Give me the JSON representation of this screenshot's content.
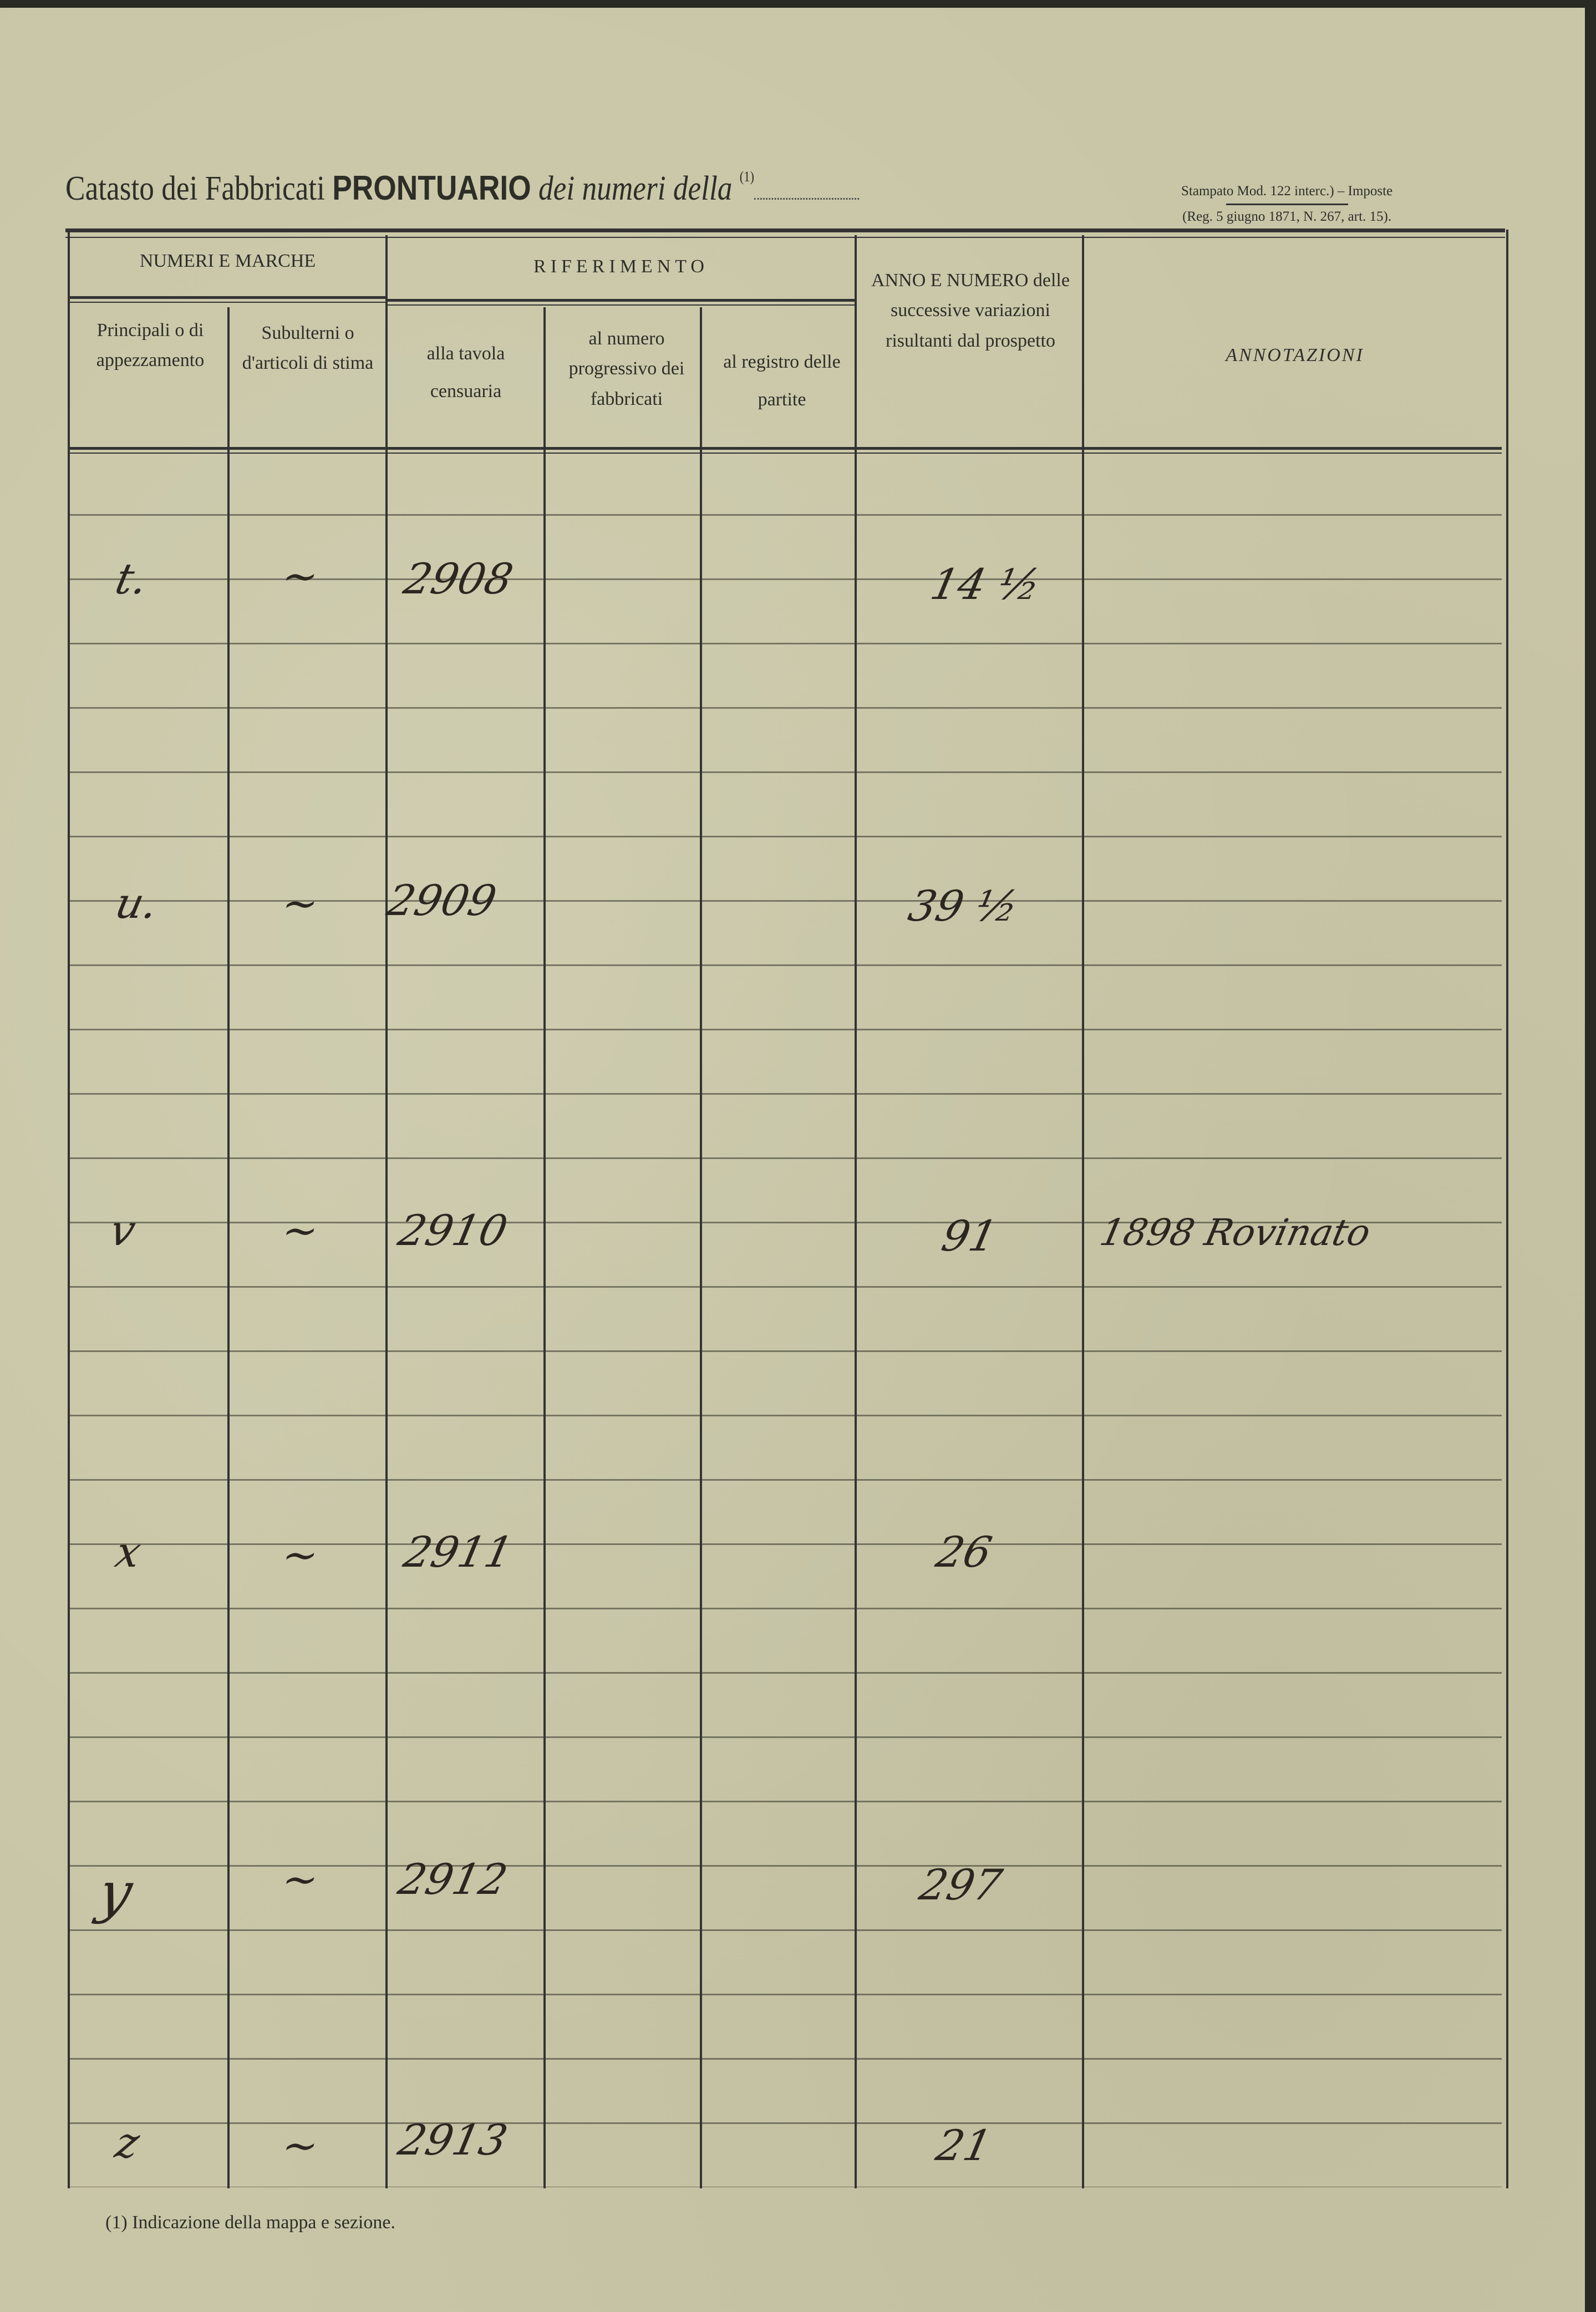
{
  "header": {
    "title_plain": "Catasto dei Fabbricati",
    "title_bold": "PRONTUARIO",
    "title_italic": "dei numeri della",
    "title_note_mark": "(1)",
    "stamp_line1": "Stampato Mod. 122 interc.) – Imposte",
    "stamp_line2": "(Reg. 5 giugno 1871, N. 267, art. 15)."
  },
  "columns": {
    "group_numeri": "NUMERI E MARCHE",
    "group_riferimento": "RIFERIMENTO",
    "principali": "Principali o di appezzamento",
    "subalterni": "Subulterni o d'articoli di stima",
    "tavola": "alla tavola censuaria",
    "numero": "al numero progressivo dei fabbricati",
    "registro": "al registro delle partite",
    "anno": "ANNO E NUMERO delle successive variazioni risultanti dal prospetto",
    "annotazioni": "ANNOTAZIONI"
  },
  "rows": [
    {
      "principale": "t.",
      "subalterno": "~",
      "tavola": "2908",
      "anno": "14 ½",
      "annotazione": ""
    },
    {
      "principale": "u.",
      "subalterno": "~",
      "tavola": "2909",
      "anno": "39 ½",
      "annotazione": ""
    },
    {
      "principale": "v",
      "subalterno": "~",
      "tavola": "2910",
      "anno": "91",
      "annotazione": "1898 Rovinato"
    },
    {
      "principale": "x",
      "subalterno": "~",
      "tavola": "2911",
      "anno": "26",
      "annotazione": ""
    },
    {
      "principale": "y",
      "subalterno": "~",
      "tavola": "2912",
      "anno": "297",
      "annotazione": ""
    },
    {
      "principale": "z",
      "subalterno": "~",
      "tavola": "2913",
      "anno": "21",
      "annotazione": ""
    }
  ],
  "footnote": "(1) Indicazione della mappa e sezione."
}
